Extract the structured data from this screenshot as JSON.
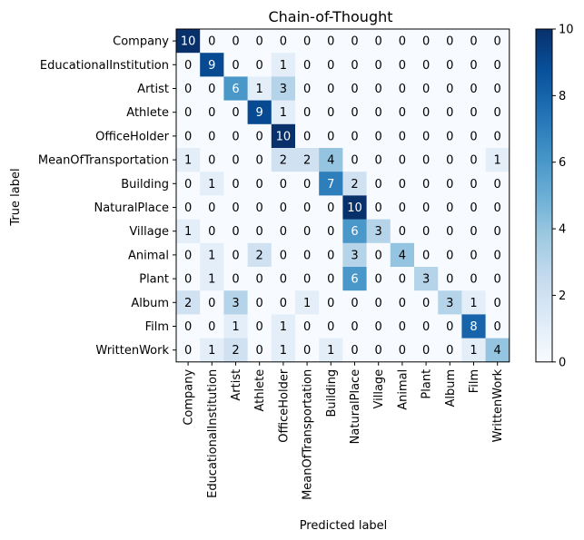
{
  "chart_data": {
    "type": "heatmap",
    "title": "Chain-of-Thought",
    "xlabel": "Predicted label",
    "ylabel": "True label",
    "labels": [
      "Company",
      "EducationalInstitution",
      "Artist",
      "Athlete",
      "OfficeHolder",
      "MeanOfTransportation",
      "Building",
      "NaturalPlace",
      "Village",
      "Animal",
      "Plant",
      "Album",
      "Film",
      "WrittenWork"
    ],
    "matrix": [
      [
        10,
        0,
        0,
        0,
        0,
        0,
        0,
        0,
        0,
        0,
        0,
        0,
        0,
        0
      ],
      [
        0,
        9,
        0,
        0,
        1,
        0,
        0,
        0,
        0,
        0,
        0,
        0,
        0,
        0
      ],
      [
        0,
        0,
        6,
        1,
        3,
        0,
        0,
        0,
        0,
        0,
        0,
        0,
        0,
        0
      ],
      [
        0,
        0,
        0,
        9,
        1,
        0,
        0,
        0,
        0,
        0,
        0,
        0,
        0,
        0
      ],
      [
        0,
        0,
        0,
        0,
        10,
        0,
        0,
        0,
        0,
        0,
        0,
        0,
        0,
        0
      ],
      [
        1,
        0,
        0,
        0,
        2,
        2,
        4,
        0,
        0,
        0,
        0,
        0,
        0,
        1
      ],
      [
        0,
        1,
        0,
        0,
        0,
        0,
        7,
        2,
        0,
        0,
        0,
        0,
        0,
        0
      ],
      [
        0,
        0,
        0,
        0,
        0,
        0,
        0,
        10,
        0,
        0,
        0,
        0,
        0,
        0
      ],
      [
        1,
        0,
        0,
        0,
        0,
        0,
        0,
        6,
        3,
        0,
        0,
        0,
        0,
        0
      ],
      [
        0,
        1,
        0,
        2,
        0,
        0,
        0,
        3,
        0,
        4,
        0,
        0,
        0,
        0
      ],
      [
        0,
        1,
        0,
        0,
        0,
        0,
        0,
        6,
        0,
        0,
        3,
        0,
        0,
        0
      ],
      [
        2,
        0,
        3,
        0,
        0,
        1,
        0,
        0,
        0,
        0,
        0,
        3,
        1,
        0
      ],
      [
        0,
        0,
        1,
        0,
        1,
        0,
        0,
        0,
        0,
        0,
        0,
        0,
        8,
        0
      ],
      [
        0,
        1,
        2,
        0,
        1,
        0,
        1,
        0,
        0,
        0,
        0,
        0,
        1,
        4
      ]
    ],
    "colorbar": {
      "min": 0,
      "max": 10,
      "ticks": [
        0,
        2,
        4,
        6,
        8,
        10
      ]
    },
    "colormap": [
      "#f7fbff",
      "#deebf7",
      "#c6dbef",
      "#9ecae1",
      "#6baed6",
      "#4292c6",
      "#2171b5",
      "#08519c",
      "#08306b"
    ]
  }
}
